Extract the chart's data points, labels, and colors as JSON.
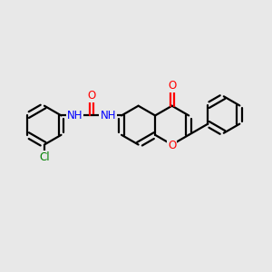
{
  "background_color": "#e8e8e8",
  "bond_color": "#000000",
  "O_color": "#ff0000",
  "N_color": "#0000ff",
  "Cl_color": "#008000",
  "lw": 1.6,
  "figsize": [
    3.0,
    3.0
  ],
  "dpi": 100,
  "xlim": [
    0,
    10
  ],
  "ylim": [
    0,
    10
  ]
}
